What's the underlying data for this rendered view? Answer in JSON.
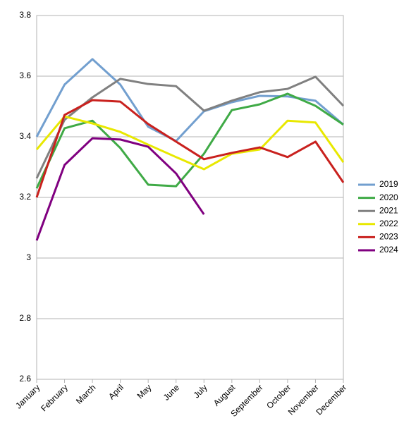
{
  "chart_data": {
    "type": "line",
    "categories": [
      "January",
      "February",
      "March",
      "April",
      "May",
      "June",
      "July",
      "August",
      "September",
      "October",
      "November",
      "December"
    ],
    "series": [
      {
        "name": "2019",
        "color": "#729fcf",
        "values": [
          3.4,
          3.572,
          3.656,
          3.572,
          3.433,
          3.386,
          3.484,
          3.514,
          3.535,
          3.533,
          3.519,
          3.44
        ]
      },
      {
        "name": "2020",
        "color": "#3faa46",
        "values": [
          3.23,
          3.428,
          3.453,
          3.363,
          3.242,
          3.237,
          3.344,
          3.488,
          3.507,
          3.542,
          3.502,
          3.44
        ]
      },
      {
        "name": "2021",
        "color": "#808080",
        "values": [
          3.263,
          3.456,
          3.53,
          3.591,
          3.574,
          3.567,
          3.486,
          3.519,
          3.547,
          3.558,
          3.598,
          3.502
        ]
      },
      {
        "name": "2022",
        "color": "#e8e800",
        "values": [
          3.358,
          3.467,
          3.444,
          3.416,
          3.374,
          3.333,
          3.293,
          3.344,
          3.358,
          3.453,
          3.447,
          3.316
        ]
      },
      {
        "name": "2023",
        "color": "#c9211e",
        "values": [
          3.2,
          3.472,
          3.521,
          3.516,
          3.442,
          3.384,
          3.326,
          3.347,
          3.365,
          3.333,
          3.384,
          3.249
        ]
      },
      {
        "name": "2024",
        "color": "#800080",
        "values": [
          3.058,
          3.307,
          3.395,
          3.391,
          3.367,
          3.279,
          3.144,
          null,
          null,
          null,
          null,
          null
        ]
      }
    ],
    "ylim": [
      2.6,
      3.8
    ],
    "yticks": [
      2.6,
      2.8,
      3,
      3.2,
      3.4,
      3.6,
      3.8
    ],
    "grid": true,
    "legend": "right"
  }
}
